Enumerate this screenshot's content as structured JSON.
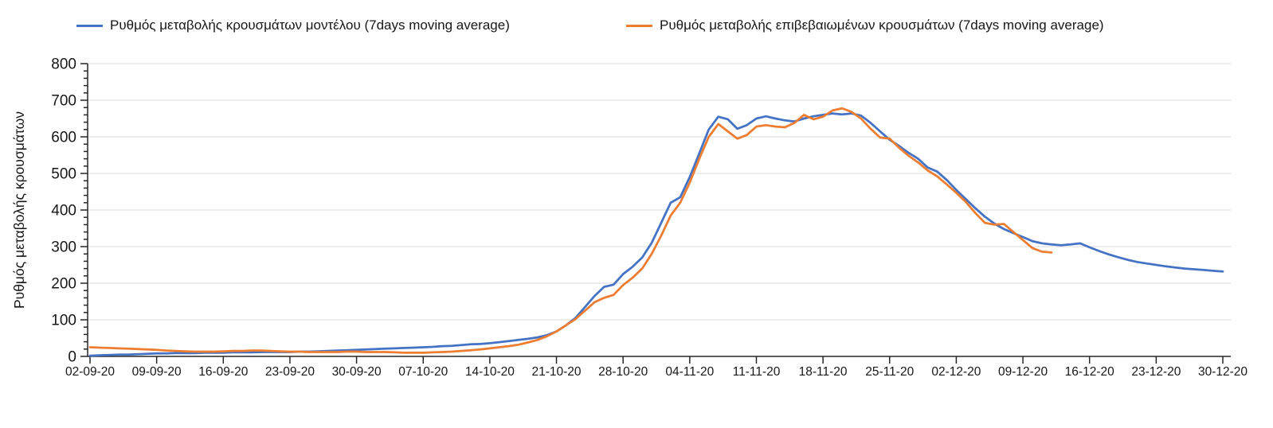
{
  "legend": {
    "items": [
      {
        "label": "Ρυθμός μεταβολής κρουσμάτων μοντέλου (7days moving average)",
        "color": "#4472C4"
      },
      {
        "label": "Ρυθμός μεταβολής επιβεβαιωμένων κρουσμάτων (7days moving average)",
        "color": "#ED7D31"
      }
    ]
  },
  "chart_data": {
    "type": "line",
    "title": "",
    "xlabel": "",
    "ylabel": "Ρυθμός μεταβολής κρουσμάτων",
    "ylim": [
      0,
      800
    ],
    "y_major_step": 100,
    "y_minor_step": 20,
    "grid": "horizontal-major",
    "legend_position": "top",
    "x_tick_labels": [
      "02-09-20",
      "09-09-20",
      "16-09-20",
      "23-09-20",
      "30-09-20",
      "07-10-20",
      "14-10-20",
      "21-10-20",
      "28-10-20",
      "04-11-20",
      "11-11-20",
      "18-11-20",
      "25-11-20",
      "02-12-20",
      "09-12-20",
      "16-12-20",
      "23-12-20",
      "30-12-20"
    ],
    "y_tick_labels": [
      "0",
      "100",
      "200",
      "300",
      "400",
      "500",
      "600",
      "700",
      "800"
    ],
    "x_unit": "daily points, one tick per 7 days, day 0 = 02-09-20",
    "total_days": 120,
    "series": [
      {
        "name": "Ρυθμός μεταβολής κρουσμάτων μοντέλου (7days moving average)",
        "color": "#4472C4",
        "start_day": 0,
        "values": [
          2,
          3,
          4,
          5,
          5,
          6,
          7,
          8,
          8,
          9,
          9,
          9,
          10,
          10,
          10,
          11,
          11,
          11,
          12,
          12,
          12,
          12,
          13,
          13,
          14,
          15,
          16,
          17,
          18,
          19,
          20,
          21,
          22,
          23,
          24,
          25,
          26,
          28,
          29,
          31,
          33,
          34,
          36,
          39,
          42,
          45,
          48,
          52,
          58,
          68,
          85,
          105,
          135,
          165,
          190,
          196,
          225,
          245,
          270,
          310,
          365,
          420,
          435,
          490,
          555,
          620,
          655,
          648,
          622,
          632,
          650,
          656,
          650,
          645,
          642,
          650,
          656,
          660,
          664,
          661,
          664,
          658,
          638,
          615,
          592,
          575,
          556,
          540,
          516,
          505,
          482,
          455,
          430,
          405,
          382,
          363,
          348,
          337,
          326,
          315,
          309,
          306,
          304,
          306,
          309,
          298,
          288,
          279,
          271,
          264,
          258,
          254,
          250,
          246,
          243,
          240,
          238,
          236,
          234,
          232
        ]
      },
      {
        "name": "Ρυθμός μεταβολής επιβεβαιωμένων κρουσμάτων (7days moving average)",
        "color": "#ED7D31",
        "start_day": 0,
        "values": [
          25,
          24,
          23,
          22,
          21,
          20,
          19,
          18,
          16,
          15,
          14,
          13,
          13,
          13,
          14,
          15,
          15,
          16,
          16,
          15,
          14,
          13,
          13,
          12,
          12,
          12,
          12,
          13,
          13,
          12,
          12,
          12,
          11,
          10,
          10,
          10,
          11,
          12,
          13,
          15,
          17,
          19,
          22,
          25,
          28,
          32,
          38,
          45,
          55,
          68,
          85,
          102,
          125,
          148,
          160,
          168,
          195,
          215,
          240,
          280,
          330,
          385,
          420,
          475,
          540,
          600,
          635,
          615,
          595,
          605,
          628,
          632,
          628,
          626,
          638,
          660,
          648,
          655,
          672,
          678,
          668,
          650,
          622,
          598,
          595,
          570,
          548,
          530,
          508,
          492,
          470,
          447,
          422,
          392,
          365,
          360,
          362,
          340,
          318,
          296,
          286,
          284
        ]
      }
    ]
  },
  "colors": {
    "gridline": "#D9D9D9",
    "axis": "#262626",
    "text": "#171717"
  }
}
